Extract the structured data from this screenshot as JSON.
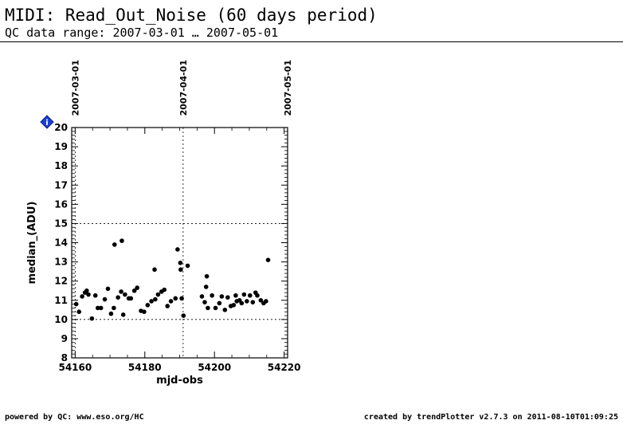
{
  "header": {
    "title": "MIDI: Read_Out_Noise (60 days period)",
    "subtitle": "QC data range: 2007-03-01 … 2007-05-01"
  },
  "footer": {
    "left": "powered by QC: www.eso.org/HC",
    "right": "created by trendPlotter v2.7.3 on 2011-08-10T01:09:25"
  },
  "marker_icon": "blue-diamond-info-icon",
  "marker_label": "i",
  "chart_data": {
    "type": "scatter",
    "xlabel": "mjd-obs",
    "ylabel": "median_(ADU)",
    "xlim": [
      54159,
      54221
    ],
    "ylim": [
      8,
      20
    ],
    "xticks": [
      54160,
      54180,
      54200,
      54220
    ],
    "yticks": [
      8,
      9,
      10,
      11,
      12,
      13,
      14,
      15,
      16,
      17,
      18,
      19,
      20
    ],
    "date_markers": [
      {
        "x": 54160,
        "label": "2007-03-01"
      },
      {
        "x": 54191,
        "label": "2007-04-01"
      },
      {
        "x": 54221,
        "label": "2007-05-01"
      }
    ],
    "threshold_lines": [
      10,
      15
    ],
    "point_color": "#000000",
    "points": [
      [
        54160.3,
        10.8
      ],
      [
        54161.1,
        10.4
      ],
      [
        54162.0,
        11.2
      ],
      [
        54162.8,
        11.4
      ],
      [
        54163.3,
        11.5
      ],
      [
        54163.8,
        11.3
      ],
      [
        54164.8,
        10.05
      ],
      [
        54165.8,
        11.25
      ],
      [
        54166.5,
        10.6
      ],
      [
        54167.4,
        10.6
      ],
      [
        54168.5,
        11.05
      ],
      [
        54169.4,
        11.6
      ],
      [
        54170.3,
        10.3
      ],
      [
        54171.1,
        10.6
      ],
      [
        54171.3,
        13.9
      ],
      [
        54172.3,
        11.15
      ],
      [
        54173.4,
        14.1
      ],
      [
        54173.2,
        11.45
      ],
      [
        54173.8,
        10.25
      ],
      [
        54174.3,
        11.3
      ],
      [
        54175.4,
        11.1
      ],
      [
        54176.0,
        11.1
      ],
      [
        54177.0,
        11.5
      ],
      [
        54177.8,
        11.65
      ],
      [
        54178.9,
        10.45
      ],
      [
        54179.8,
        10.4
      ],
      [
        54180.8,
        10.75
      ],
      [
        54181.9,
        10.95
      ],
      [
        54183.0,
        11.05
      ],
      [
        54182.8,
        12.6
      ],
      [
        54183.8,
        11.3
      ],
      [
        54184.8,
        11.45
      ],
      [
        54185.6,
        11.55
      ],
      [
        54186.5,
        10.7
      ],
      [
        54187.5,
        10.95
      ],
      [
        54188.8,
        11.1
      ],
      [
        54189.4,
        13.65
      ],
      [
        54190.2,
        12.95
      ],
      [
        54190.3,
        12.6
      ],
      [
        54190.6,
        11.1
      ],
      [
        54191.1,
        10.2
      ],
      [
        54192.3,
        12.8
      ],
      [
        54196.4,
        11.2
      ],
      [
        54197.2,
        10.9
      ],
      [
        54197.6,
        11.7
      ],
      [
        54197.8,
        12.25
      ],
      [
        54198.1,
        10.6
      ],
      [
        54199.3,
        11.25
      ],
      [
        54200.3,
        10.6
      ],
      [
        54201.4,
        10.85
      ],
      [
        54202.1,
        11.2
      ],
      [
        54203.0,
        10.5
      ],
      [
        54203.8,
        11.15
      ],
      [
        54204.7,
        10.7
      ],
      [
        54205.5,
        10.75
      ],
      [
        54206.1,
        11.25
      ],
      [
        54206.4,
        10.95
      ],
      [
        54207.2,
        11.0
      ],
      [
        54207.8,
        10.85
      ],
      [
        54208.5,
        11.3
      ],
      [
        54209.3,
        10.95
      ],
      [
        54210.2,
        11.25
      ],
      [
        54211.0,
        10.9
      ],
      [
        54211.8,
        11.4
      ],
      [
        54212.3,
        11.25
      ],
      [
        54213.3,
        11.0
      ],
      [
        54214.1,
        10.85
      ],
      [
        54214.8,
        10.95
      ],
      [
        54215.4,
        13.1
      ]
    ]
  }
}
